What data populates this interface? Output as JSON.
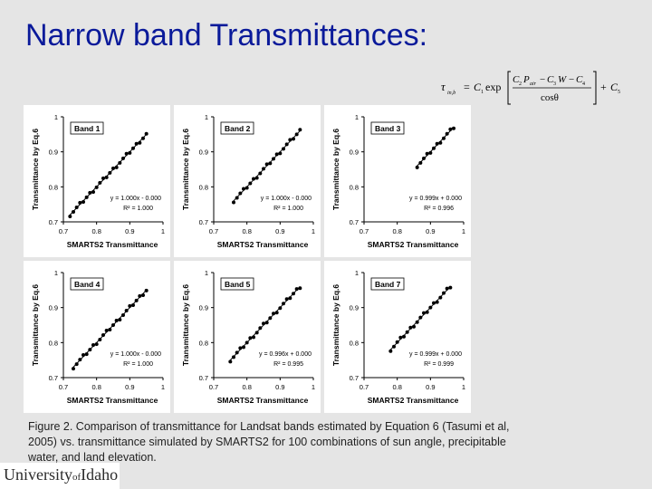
{
  "slide": {
    "title": "Narrow band Transmittances:",
    "caption": "Figure 2. Comparison of transmittance for Landsat bands estimated by Equation 6 (Tasumi et al, 2005) vs. transmittance simulated by SMARTS2 for 100 combinations of sun angle, precipitable water, and land elevation.",
    "logo": {
      "part1": "University",
      "part2": "of",
      "part3": "Idaho"
    },
    "formula": {
      "lhs": "τ",
      "lhs_sub": "in,b",
      "eq": "=",
      "c1": "C",
      "c1_sub": "1",
      "exp": "exp",
      "numer_a": "C",
      "numer_a_sub": "2",
      "numer_p": "P",
      "numer_p_sub": "air",
      "numer_minus1": "−",
      "numer_c3": "C",
      "numer_c3_sub": "3",
      "numer_w": "W",
      "numer_minus2": "−",
      "numer_c4": "C",
      "numer_c4_sub": "4",
      "denom": "cosθ",
      "plus": "+",
      "c5": "C",
      "c5_sub": "5"
    }
  },
  "chart_data": [
    {
      "type": "scatter",
      "title": "Band 1",
      "xlabel": "SMARTS2 Transmittance",
      "ylabel": "Transmittance by Eq.6",
      "xlim": [
        0.7,
        1
      ],
      "ylim": [
        0.7,
        1
      ],
      "xticks": [
        "0.7",
        "0.8",
        "0.9",
        "1"
      ],
      "yticks": [
        "0.7",
        "0.8",
        "0.9",
        "1"
      ],
      "fit": "y = 1.000x - 0.000",
      "r2": "R² = 1.000",
      "points_x": [
        0.72,
        0.73,
        0.74,
        0.75,
        0.76,
        0.77,
        0.78,
        0.79,
        0.8,
        0.81,
        0.82,
        0.83,
        0.84,
        0.85,
        0.86,
        0.87,
        0.88,
        0.89,
        0.9,
        0.91,
        0.92,
        0.93,
        0.94,
        0.95
      ]
    },
    {
      "type": "scatter",
      "title": "Band 2",
      "xlabel": "SMARTS2 Transmittance",
      "ylabel": "Transmittance by Eq.6",
      "xlim": [
        0.7,
        1
      ],
      "ylim": [
        0.7,
        1
      ],
      "xticks": [
        "0.7",
        "0.8",
        "0.9",
        "1"
      ],
      "yticks": [
        "0.7",
        "0.8",
        "0.9",
        "1"
      ],
      "fit": "y = 1.000x - 0.000",
      "r2": "R² = 1.000",
      "points_x": [
        0.76,
        0.77,
        0.78,
        0.79,
        0.8,
        0.81,
        0.82,
        0.83,
        0.84,
        0.85,
        0.86,
        0.87,
        0.88,
        0.89,
        0.9,
        0.91,
        0.92,
        0.93,
        0.94,
        0.95,
        0.96
      ]
    },
    {
      "type": "scatter",
      "title": "Band 3",
      "xlabel": "SMARTS2 Transmittance",
      "ylabel": "Transmittance by Eq.6",
      "xlim": [
        0.7,
        1
      ],
      "ylim": [
        0.7,
        1
      ],
      "xticks": [
        "0.7",
        "0.8",
        "0.9",
        "1"
      ],
      "yticks": [
        "0.7",
        "0.8",
        "0.9",
        "1"
      ],
      "fit": "y = 0.999x + 0.000",
      "r2": "R² = 0.996",
      "points_x": [
        0.86,
        0.87,
        0.88,
        0.89,
        0.9,
        0.91,
        0.92,
        0.93,
        0.94,
        0.95,
        0.96,
        0.97
      ]
    },
    {
      "type": "scatter",
      "title": "Band 4",
      "xlabel": "SMARTS2 Transmittance",
      "ylabel": "Transmittance by Eq.6",
      "xlim": [
        0.7,
        1
      ],
      "ylim": [
        0.7,
        1
      ],
      "xticks": [
        "0.7",
        "0.8",
        "0.9",
        "1"
      ],
      "yticks": [
        "0.7",
        "0.8",
        "0.9",
        "1"
      ],
      "fit": "y = 1.000x - 0.000",
      "r2": "R² = 1.000",
      "points_x": [
        0.73,
        0.74,
        0.75,
        0.76,
        0.77,
        0.78,
        0.79,
        0.8,
        0.81,
        0.82,
        0.83,
        0.84,
        0.85,
        0.86,
        0.87,
        0.88,
        0.89,
        0.9,
        0.91,
        0.92,
        0.93,
        0.94,
        0.95
      ]
    },
    {
      "type": "scatter",
      "title": "Band 5",
      "xlabel": "SMARTS2 Transmittance",
      "ylabel": "Transmittance by Eq.6",
      "xlim": [
        0.7,
        1
      ],
      "ylim": [
        0.7,
        1
      ],
      "xticks": [
        "0.7",
        "0.8",
        "0.9",
        "1"
      ],
      "yticks": [
        "0.7",
        "0.8",
        "0.9",
        "1"
      ],
      "fit": "y = 0.996x + 0.000",
      "r2": "R² = 0.995",
      "points_x": [
        0.75,
        0.76,
        0.77,
        0.78,
        0.79,
        0.8,
        0.81,
        0.82,
        0.83,
        0.84,
        0.85,
        0.86,
        0.87,
        0.88,
        0.89,
        0.9,
        0.91,
        0.92,
        0.93,
        0.94,
        0.95,
        0.96
      ]
    },
    {
      "type": "scatter",
      "title": "Band 7",
      "xlabel": "SMARTS2 Transmittance",
      "ylabel": "Transmittance by Eq.6",
      "xlim": [
        0.7,
        1
      ],
      "ylim": [
        0.7,
        1
      ],
      "xticks": [
        "0.7",
        "0.8",
        "0.9",
        "1"
      ],
      "yticks": [
        "0.7",
        "0.8",
        "0.9",
        "1"
      ],
      "fit": "y = 0.999x + 0.000",
      "r2": "R² = 0.999",
      "points_x": [
        0.78,
        0.79,
        0.8,
        0.81,
        0.82,
        0.83,
        0.84,
        0.85,
        0.86,
        0.87,
        0.88,
        0.89,
        0.9,
        0.91,
        0.92,
        0.93,
        0.94,
        0.95,
        0.96
      ]
    }
  ]
}
